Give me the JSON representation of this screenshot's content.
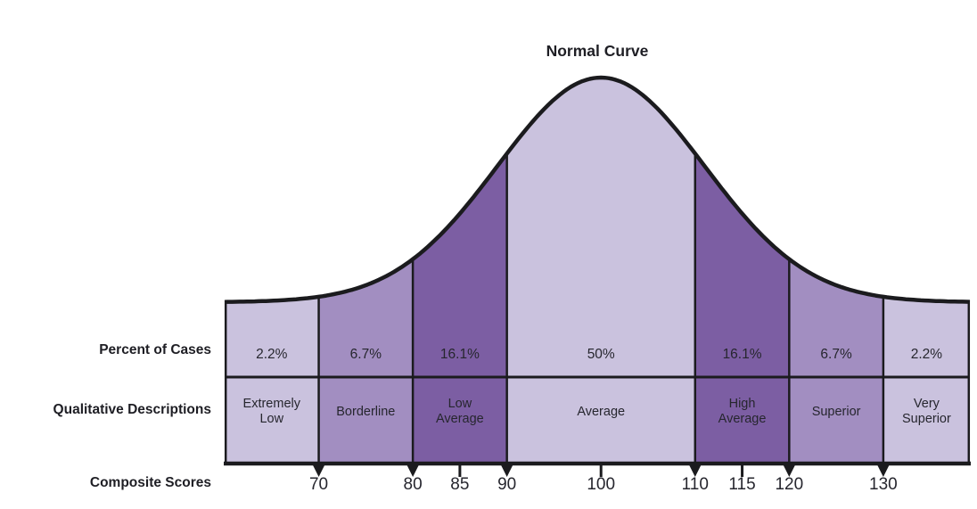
{
  "chart_data": {
    "type": "area",
    "subtype": "normal-distribution-bands",
    "title": "Normal Curve",
    "row_labels": {
      "percent": "Percent of Cases",
      "qualitative": "Qualitative Descriptions",
      "scores": "Composite Scores"
    },
    "bands": [
      {
        "score_from": null,
        "score_to": 70,
        "percent": "2.2%",
        "value": 2.2,
        "description": "Extremely\nLow",
        "shade": "light"
      },
      {
        "score_from": 70,
        "score_to": 80,
        "percent": "6.7%",
        "value": 6.7,
        "description": "Borderline",
        "shade": "medium"
      },
      {
        "score_from": 80,
        "score_to": 90,
        "percent": "16.1%",
        "value": 16.1,
        "description": "Low\nAverage",
        "shade": "dark"
      },
      {
        "score_from": 90,
        "score_to": 110,
        "percent": "50%",
        "value": 50,
        "description": "Average",
        "shade": "light"
      },
      {
        "score_from": 110,
        "score_to": 120,
        "percent": "16.1%",
        "value": 16.1,
        "description": "High\nAverage",
        "shade": "dark"
      },
      {
        "score_from": 120,
        "score_to": 130,
        "percent": "6.7%",
        "value": 6.7,
        "description": "Superior",
        "shade": "medium"
      },
      {
        "score_from": 130,
        "score_to": null,
        "percent": "2.2%",
        "value": 2.2,
        "description": "Very\nSuperior",
        "shade": "light"
      }
    ],
    "score_ticks": [
      {
        "label": "70",
        "score": 70,
        "style": "triangle"
      },
      {
        "label": "80",
        "score": 80,
        "style": "triangle"
      },
      {
        "label": "85",
        "score": 85,
        "style": "line"
      },
      {
        "label": "90",
        "score": 90,
        "style": "triangle"
      },
      {
        "label": "100",
        "score": 100,
        "style": "line"
      },
      {
        "label": "110",
        "score": 110,
        "style": "triangle"
      },
      {
        "label": "115",
        "score": 115,
        "style": "line"
      },
      {
        "label": "120",
        "score": 120,
        "style": "triangle"
      },
      {
        "label": "130",
        "score": 130,
        "style": "triangle"
      }
    ],
    "colors": {
      "band_light": "#cac2de",
      "band_medium": "#a28ec1",
      "band_dark": "#7c5ea3",
      "line": "#1b1b1e",
      "text": "#26262e"
    },
    "legend_position": "none",
    "grid": false
  }
}
